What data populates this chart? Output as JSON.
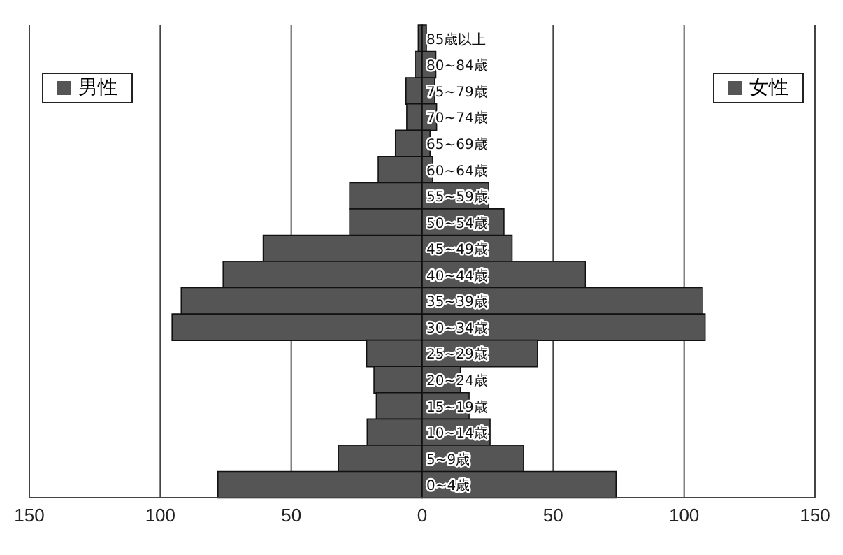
{
  "chart_data": {
    "type": "bar",
    "orientation": "horizontal",
    "stacked": true,
    "categories": [
      "85歳以上",
      "80~84歳",
      "75~79歳",
      "70~74歳",
      "65~69歳",
      "60~64歳",
      "55~59歳",
      "50~54歳",
      "45~49歳",
      "40~44歳",
      "35~39歳",
      "30~34歳",
      "25~29歳",
      "20~24歳",
      "15~19歳",
      "10~14歳",
      "5~9歳",
      "0~4歳"
    ],
    "series": [
      {
        "name": "男性",
        "color": "#555555",
        "values": [
          -1.5,
          -2.7,
          -6.2,
          -5.9,
          -10.2,
          -16.8,
          -27.7,
          -27.7,
          -60.7,
          -76,
          -92,
          -95.5,
          -21.2,
          -18.4,
          -17.5,
          -21,
          -32,
          -78
        ]
      },
      {
        "name": "女性",
        "color": "#555555",
        "values": [
          1.6,
          5.2,
          4.8,
          5.5,
          3,
          4,
          25.4,
          31.2,
          34.3,
          62.3,
          107,
          108,
          44,
          14.6,
          17.9,
          25.9,
          38.7,
          74
        ]
      }
    ],
    "xlim": [
      -150,
      150
    ],
    "xticks": [
      {
        "value": -150,
        "label": "150"
      },
      {
        "value": -100,
        "label": "100"
      },
      {
        "value": -50,
        "label": "50"
      },
      0,
      50,
      100,
      150
    ],
    "grid": "x",
    "legend": "top"
  }
}
